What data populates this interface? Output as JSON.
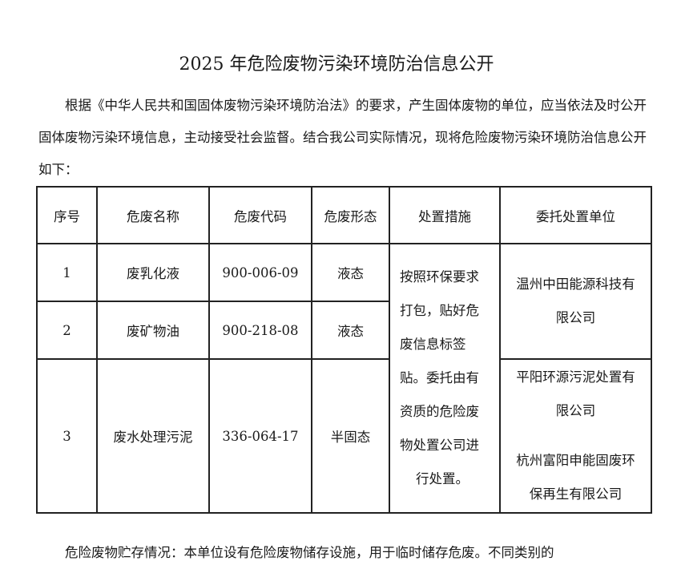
{
  "title": "2025 年危险废物污染环境防治信息公开",
  "intro": "根据《中华人民共和国固体废物污染环境防治法》的要求，产生固体废物的单位，应当依法及时公开固体废物污染环境信息，主动接受社会监督。结合我公司实际情况，现将危险废物污染环境防治信息公开如下：",
  "table": {
    "headers": [
      "序号",
      "危废名称",
      "危废代码",
      "危废形态",
      "处置措施",
      "委托处置单位"
    ],
    "rows": [
      {
        "no": "1",
        "name": "废乳化液",
        "code": "900-006-09",
        "form": "液态"
      },
      {
        "no": "2",
        "name": "废矿物油",
        "code": "900-218-08",
        "form": "液态"
      },
      {
        "no": "3",
        "name": "废水处理污泥",
        "code": "336-064-17",
        "form": "半固态"
      }
    ],
    "measures_lines": [
      "按照环保要求",
      "打包，贴好危",
      "废信息标签",
      "贴。委托由有",
      "资质的危险废",
      "物处置公司进",
      "行处置。"
    ],
    "unit_a_lines": [
      "温州中田能源科技有",
      "限公司"
    ],
    "unit_b_lines": [
      "平阳环源污泥处置有",
      "限公司"
    ],
    "unit_c_lines": [
      "杭州富阳申能固废环",
      "保再生有限公司"
    ]
  },
  "storage": "危险废物贮存情况：本单位设有危险废物储存设施，用于临时储存危废。不同类别的"
}
